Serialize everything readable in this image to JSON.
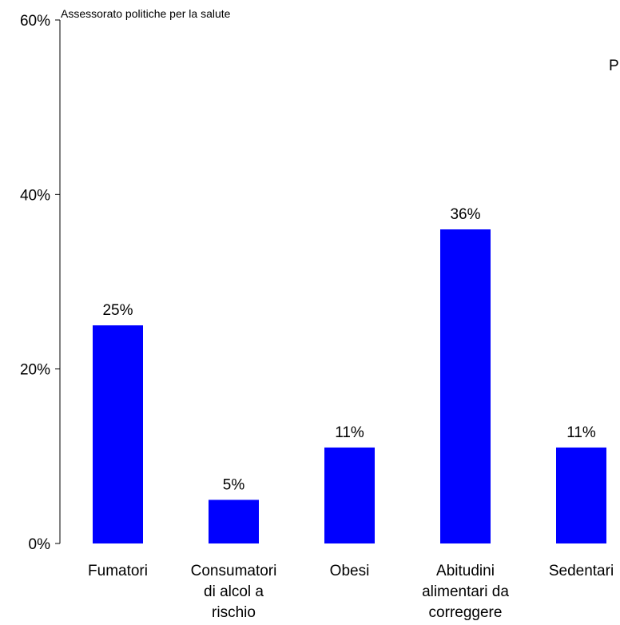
{
  "chart_data": {
    "type": "bar",
    "subtitle": "Assessorato politiche per la salute",
    "edge_text": "P",
    "categories": [
      [
        "Fumatori"
      ],
      [
        "Consumatori",
        "di alcol a",
        "rischio"
      ],
      [
        "Obesi"
      ],
      [
        "Abitudini",
        "alimentari da",
        "correggere"
      ],
      [
        "Sedentari"
      ]
    ],
    "values": [
      25,
      5,
      11,
      36,
      11
    ],
    "value_labels": [
      "25%",
      "5%",
      "11%",
      "36%",
      "11%"
    ],
    "ylim": [
      0,
      60
    ],
    "yticks": [
      0,
      20,
      40,
      60
    ],
    "ytick_labels": [
      "0%",
      "20%",
      "40%",
      "60%"
    ],
    "bar_color": "#0000FF",
    "grid": false,
    "legend": "none",
    "xlabel": "",
    "ylabel": ""
  }
}
